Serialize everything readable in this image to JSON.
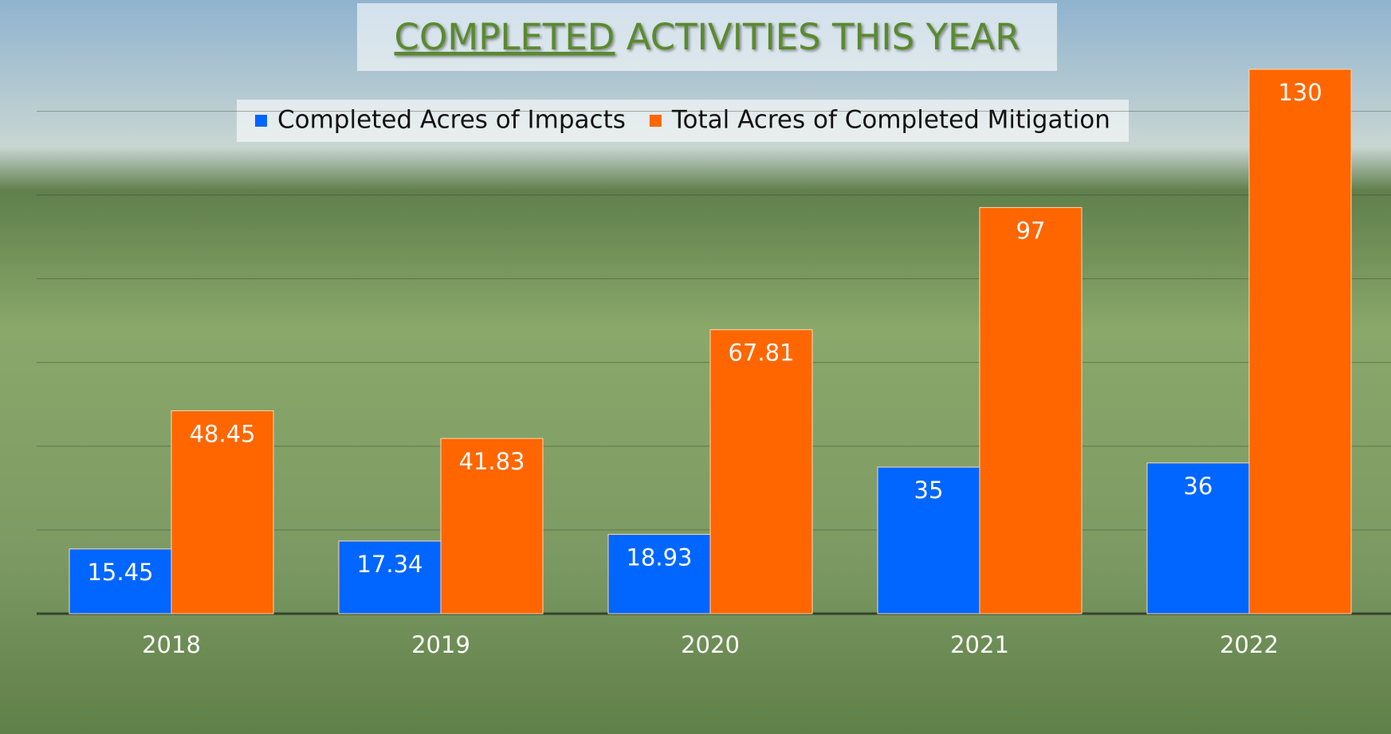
{
  "chart_data": {
    "type": "bar",
    "title": [
      "COMPLETED",
      "ACTIVITIES THIS YEAR"
    ],
    "categories": [
      "2018",
      "2019",
      "2020",
      "2021",
      "2022"
    ],
    "series": [
      {
        "name": "Completed Acres of Impacts",
        "color": "#0066ff",
        "values": [
          15.45,
          17.34,
          18.93,
          35,
          36
        ]
      },
      {
        "name": "Total Acres of Completed Mitigation",
        "color": "#ff6600",
        "values": [
          48.45,
          41.83,
          67.81,
          97,
          130
        ]
      }
    ],
    "ylim": [
      0,
      130
    ],
    "yticks": [
      0,
      20,
      40,
      60,
      80,
      100,
      120
    ],
    "grid": true,
    "legend": "top"
  }
}
